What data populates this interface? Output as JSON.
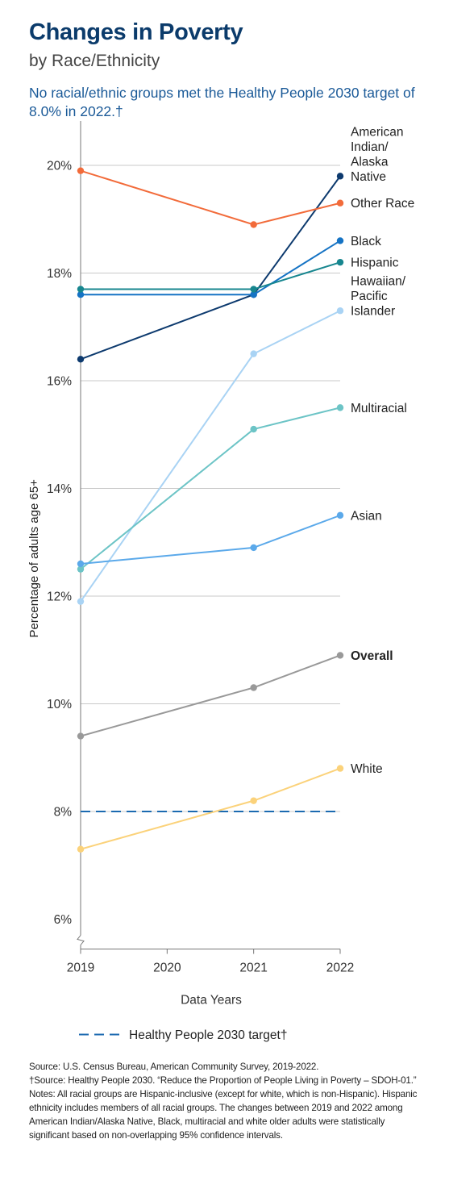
{
  "header": {
    "title": "Changes in Poverty",
    "subtitle": "by Race/Ethnicity",
    "note": "No racial/ethnic groups met the Healthy People 2030 target of 8.0% in 2022.†"
  },
  "chart_data": {
    "type": "line",
    "title": "Changes in Poverty",
    "subtitle": "by Race/Ethnicity",
    "xlabel": "Data Years",
    "ylabel": "Percentage of adults age 65+",
    "x": [
      2019,
      2020,
      2021,
      2022
    ],
    "x_tick_labels": [
      "2019",
      "2020",
      "2021",
      "2022"
    ],
    "ylim": [
      6,
      20
    ],
    "y_ticks": [
      6,
      8,
      10,
      12,
      14,
      16,
      18,
      20
    ],
    "y_tick_labels": [
      "6%",
      "8%",
      "10%",
      "12%",
      "14%",
      "16%",
      "18%",
      "20%"
    ],
    "grid": "horizontal",
    "series": [
      {
        "name": "American Indian/ Alaska Native",
        "label_lines": [
          "American",
          "Indian/",
          "Alaska",
          "Native"
        ],
        "x": [
          2019,
          2021,
          2022
        ],
        "values": [
          16.4,
          17.6,
          19.8
        ],
        "color": "#0d3a6e",
        "bold": false
      },
      {
        "name": "Other Race",
        "label_lines": [
          "Other Race"
        ],
        "x": [
          2019,
          2021,
          2022
        ],
        "values": [
          19.9,
          18.9,
          19.3
        ],
        "color": "#f26b3a",
        "bold": false
      },
      {
        "name": "Black",
        "label_lines": [
          "Black"
        ],
        "x": [
          2019,
          2021,
          2022
        ],
        "values": [
          17.6,
          17.6,
          18.6
        ],
        "color": "#1573c4",
        "bold": false
      },
      {
        "name": "Hispanic",
        "label_lines": [
          "Hispanic"
        ],
        "x": [
          2019,
          2021,
          2022
        ],
        "values": [
          17.7,
          17.7,
          18.2
        ],
        "color": "#17868f",
        "bold": false
      },
      {
        "name": "Hawaiian/ Pacific Islander",
        "label_lines": [
          "Hawaiian/",
          "Pacific",
          "Islander"
        ],
        "x": [
          2019,
          2021,
          2022
        ],
        "values": [
          11.9,
          16.5,
          17.3
        ],
        "color": "#a9d3f4",
        "bold": false
      },
      {
        "name": "Multiracial",
        "label_lines": [
          "Multiracial"
        ],
        "x": [
          2019,
          2021,
          2022
        ],
        "values": [
          12.5,
          15.1,
          15.5
        ],
        "color": "#6cc4c6",
        "bold": false
      },
      {
        "name": "Asian",
        "label_lines": [
          "Asian"
        ],
        "x": [
          2019,
          2021,
          2022
        ],
        "values": [
          12.6,
          12.9,
          13.5
        ],
        "color": "#5ba9ea",
        "bold": false
      },
      {
        "name": "Overall",
        "label_lines": [
          "Overall"
        ],
        "x": [
          2019,
          2021,
          2022
        ],
        "values": [
          9.4,
          10.3,
          10.9
        ],
        "color": "#999999",
        "bold": true
      },
      {
        "name": "White",
        "label_lines": [
          "White"
        ],
        "x": [
          2019,
          2021,
          2022
        ],
        "values": [
          7.3,
          8.2,
          8.8
        ],
        "color": "#fbd27a",
        "bold": false
      }
    ],
    "reference_line": {
      "value": 8,
      "label": "Healthy People 2030 target†",
      "color": "#1b6ab0",
      "style": "dashed"
    }
  },
  "footer": {
    "source": "Source: U.S. Census Bureau, American Community Survey, 2019-2022.",
    "source2": "†Source: Healthy People 2030. “Reduce the Proportion of People Living in Poverty – SDOH-01.”",
    "notes": "Notes: All racial groups are Hispanic-inclusive (except for white, which is non-Hispanic). Hispanic ethnicity includes members of all racial groups. The changes between 2019 and 2022 among American Indian/Alaska Native, Black, multiracial and white older adults were statistically significant based on non-overlapping 95% confidence intervals."
  }
}
